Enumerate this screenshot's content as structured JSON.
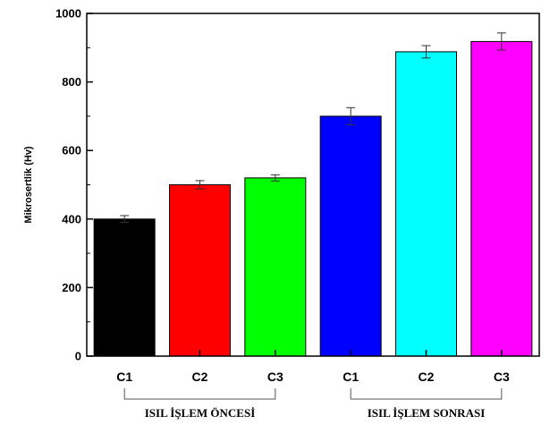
{
  "chart_data": {
    "type": "bar",
    "title": "",
    "xlabel": "",
    "ylabel": "Mikrosertlik (Hv)",
    "ylim": [
      0,
      1000
    ],
    "yticks": [
      0,
      200,
      400,
      600,
      800,
      1000
    ],
    "grid": false,
    "categories": [
      "C1",
      "C2",
      "C3",
      "C1",
      "C2",
      "C3"
    ],
    "values": [
      400,
      500,
      520,
      700,
      888,
      918
    ],
    "errors": [
      10,
      12,
      9,
      25,
      18,
      25
    ],
    "colors": [
      "#000000",
      "#ff0000",
      "#00ff00",
      "#0000ff",
      "#00ffff",
      "#ff00ff"
    ],
    "groups": [
      {
        "label": "ISIL İŞLEM ÖNCESİ",
        "from": 0,
        "to": 2
      },
      {
        "label": "ISIL İŞLEM SONRASI",
        "from": 3,
        "to": 5
      }
    ]
  }
}
